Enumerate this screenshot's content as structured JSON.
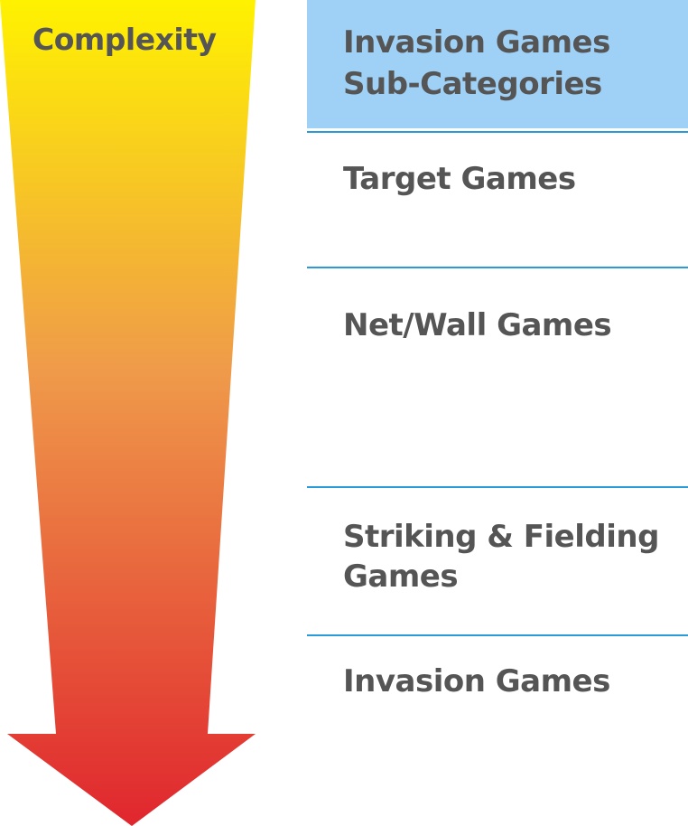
{
  "arrow": {
    "label": "Complexity",
    "gradient_top": "#fff200",
    "gradient_mid": "#ef9a4a",
    "gradient_bottom": "#e0262e"
  },
  "header": {
    "title_line1": "Invasion Games",
    "title_line2": "Sub-Categories",
    "background": "#9fd0f5"
  },
  "categories": [
    {
      "label_line1": "Target Games",
      "label_line2": ""
    },
    {
      "label_line1": "Net/Wall Games",
      "label_line2": ""
    },
    {
      "label_line1": "Striking & Fielding",
      "label_line2": "Games"
    },
    {
      "label_line1": "Invasion Games",
      "label_line2": ""
    }
  ],
  "divider_color": "#2a9ad8",
  "text_color": "#555555"
}
